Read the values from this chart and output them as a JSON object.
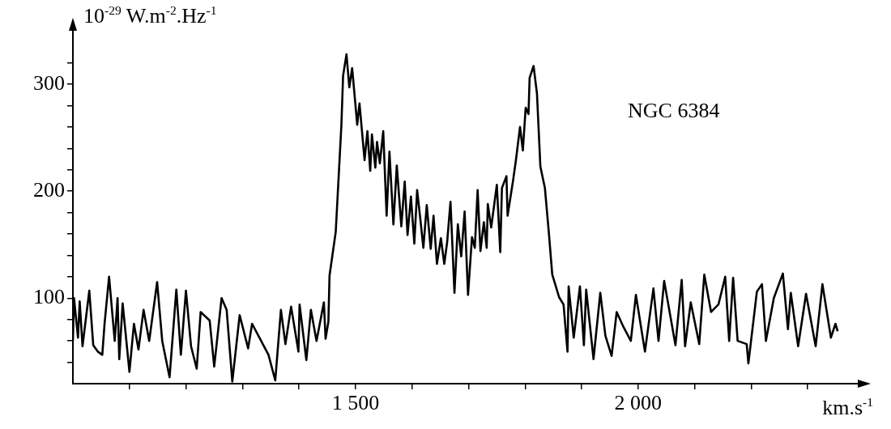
{
  "chart_data": {
    "type": "line",
    "ylabel": "10$^{-29}$ W.m$^{-2}$.Hz$^{-1}$",
    "xlabel": "km.s$^{-1}$",
    "annotations": [
      "NGC 6384"
    ],
    "color": "#000000",
    "marker": "none",
    "x": [
      1000,
      1002,
      1009,
      1012,
      1017,
      1029,
      1036,
      1044,
      1052,
      1056,
      1064,
      1074,
      1079,
      1082,
      1088,
      1100,
      1108,
      1116,
      1125,
      1135,
      1149,
      1158,
      1171,
      1183,
      1191,
      1200,
      1209,
      1219,
      1226,
      1242,
      1250,
      1263,
      1272,
      1282,
      1295,
      1310,
      1317,
      1333,
      1346,
      1358,
      1368,
      1376,
      1386,
      1399,
      1401,
      1413,
      1421,
      1431,
      1444,
      1447,
      1452,
      1454,
      1465,
      1471,
      1475,
      1478,
      1484,
      1489,
      1494,
      1503,
      1507,
      1516,
      1521,
      1526,
      1529,
      1535,
      1538,
      1543,
      1549,
      1555,
      1560,
      1567,
      1573,
      1581,
      1587,
      1592,
      1598,
      1604,
      1609,
      1615,
      1620,
      1626,
      1633,
      1638,
      1644,
      1651,
      1657,
      1662,
      1668,
      1675,
      1681,
      1687,
      1693,
      1699,
      1706,
      1711,
      1716,
      1721,
      1727,
      1732,
      1734,
      1740,
      1750,
      1756,
      1759,
      1767,
      1769,
      1779,
      1784,
      1791,
      1796,
      1801,
      1806,
      1808,
      1815,
      1821,
      1827,
      1835,
      1842,
      1848,
      1860,
      1868,
      1875,
      1877,
      1886,
      1897,
      1904,
      1908,
      1921,
      1933,
      1942,
      1953,
      1962,
      1974,
      1987,
      1996,
      2012,
      2027,
      2036,
      2046,
      2066,
      2077,
      2083,
      2093,
      2108,
      2117,
      2129,
      2142,
      2154,
      2161,
      2168,
      2176,
      2192,
      2195,
      2210,
      2219,
      2226,
      2240,
      2256,
      2265,
      2270,
      2283,
      2297,
      2314,
      2326,
      2341,
      2349,
      2353
    ],
    "values": [
      60,
      100,
      63,
      97,
      55,
      107,
      56,
      50,
      47,
      76,
      120,
      60,
      100,
      43,
      95,
      31,
      76,
      52,
      89,
      60,
      115,
      60,
      26,
      108,
      47,
      107,
      55,
      34,
      87,
      79,
      36,
      100,
      89,
      22,
      84,
      53,
      76,
      60,
      47,
      23,
      89,
      57,
      92,
      50,
      94,
      42,
      89,
      60,
      96,
      62,
      78,
      121,
      162,
      222,
      262,
      308,
      328,
      297,
      315,
      262,
      282,
      229,
      256,
      219,
      253,
      222,
      246,
      226,
      256,
      177,
      237,
      169,
      224,
      167,
      209,
      159,
      195,
      151,
      201,
      172,
      147,
      187,
      146,
      177,
      132,
      156,
      132,
      152,
      190,
      105,
      169,
      139,
      181,
      103,
      157,
      147,
      201,
      144,
      171,
      147,
      188,
      166,
      206,
      143,
      203,
      214,
      177,
      211,
      230,
      260,
      238,
      278,
      272,
      306,
      317,
      291,
      223,
      203,
      161,
      122,
      101,
      94,
      50,
      111,
      63,
      111,
      56,
      108,
      43,
      105,
      65,
      46,
      87,
      73,
      60,
      103,
      50,
      109,
      60,
      116,
      56,
      117,
      55,
      96,
      57,
      122,
      87,
      94,
      120,
      60,
      119,
      60,
      57,
      39,
      106,
      113,
      60,
      100,
      123,
      71,
      105,
      55,
      104,
      55,
      113,
      63,
      76,
      69
    ],
    "xlim": [
      1000,
      2400
    ],
    "ylim": [
      20,
      356
    ],
    "xticks": [
      {
        "value": 1100,
        "label": null
      },
      {
        "value": 1200,
        "label": null
      },
      {
        "value": 1300,
        "label": null
      },
      {
        "value": 1400,
        "label": null
      },
      {
        "value": 1500,
        "label": "1 500"
      },
      {
        "value": 1600,
        "label": null
      },
      {
        "value": 1700,
        "label": null
      },
      {
        "value": 1800,
        "label": null
      },
      {
        "value": 1900,
        "label": null
      },
      {
        "value": 2000,
        "label": "2 000"
      },
      {
        "value": 2100,
        "label": null
      },
      {
        "value": 2200,
        "label": null
      },
      {
        "value": 2300,
        "label": null
      }
    ],
    "yticks": [
      {
        "value": 40,
        "label": null
      },
      {
        "value": 60,
        "label": null
      },
      {
        "value": 80,
        "label": null
      },
      100,
      {
        "value": 120,
        "label": null
      },
      {
        "value": 140,
        "label": null
      },
      {
        "value": 160,
        "label": null
      },
      {
        "value": 180,
        "label": null
      },
      200,
      {
        "value": 220,
        "label": null
      },
      {
        "value": 240,
        "label": null
      },
      {
        "value": 260,
        "label": null
      },
      {
        "value": 280,
        "label": null
      },
      300,
      {
        "value": 320,
        "label": null
      }
    ]
  }
}
